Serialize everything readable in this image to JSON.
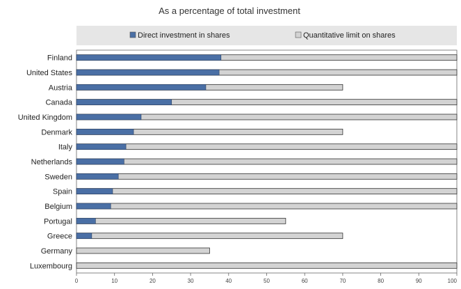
{
  "chart_data": {
    "type": "bar",
    "orientation": "horizontal",
    "stacked": false,
    "title": "As a percentage of total investment",
    "categories": [
      "Finland",
      "United States",
      "Austria",
      "Canada",
      "United Kingdom",
      "Denmark",
      "Italy",
      "Netherlands",
      "Sweden",
      "Spain",
      "Belgium",
      "Portugal",
      "Greece",
      "Germany",
      "Luxembourg"
    ],
    "series": [
      {
        "name": "Direct investment in shares",
        "color": "#4a6fa5",
        "values": [
          38,
          37.5,
          34,
          25,
          17,
          15,
          13,
          12.5,
          11,
          9.5,
          9,
          5,
          4,
          0,
          0
        ]
      },
      {
        "name": "Quantitative limit on shares",
        "color": "#d3d3d3",
        "values": [
          100,
          100,
          70,
          100,
          100,
          70,
          100,
          100,
          100,
          100,
          100,
          55,
          70,
          35,
          100
        ]
      }
    ],
    "xlim": [
      0,
      100
    ],
    "xticks": [
      "0",
      "10",
      "20",
      "30",
      "40",
      "50",
      "60",
      "70",
      "80",
      "90",
      "100"
    ],
    "legend_position": "top",
    "grid": false
  }
}
